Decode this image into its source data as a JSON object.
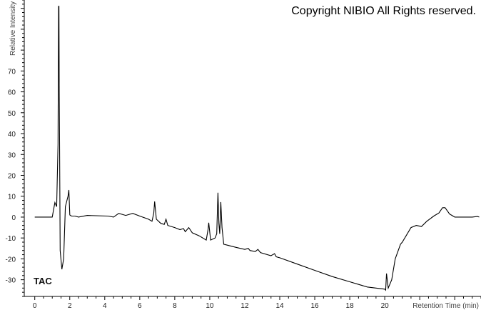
{
  "copyright": "Copyright NIBIO All Rights reserved.",
  "chart_data": {
    "type": "line",
    "title": "",
    "trace_label": "TAC",
    "xlabel": "Retention Time (min)",
    "ylabel": "Relative Intensity",
    "xlim": [
      -0.6,
      25.5
    ],
    "ylim": [
      -38,
      104
    ],
    "xticks": [
      0,
      2,
      4,
      6,
      8,
      10,
      12,
      14,
      16,
      18,
      20
    ],
    "yticks": [
      -30,
      -20,
      -10,
      0,
      10,
      20,
      30,
      40,
      50,
      60,
      70
    ],
    "grid": false,
    "line_color": "#000000",
    "series": [
      {
        "x": [
          0,
          1.0,
          1.15,
          1.25,
          1.33,
          1.36,
          1.38,
          1.4,
          1.42,
          1.45,
          1.55,
          1.65,
          1.75,
          1.9,
          1.95,
          2.0,
          2.1,
          2.3,
          2.5,
          3.0,
          4.2,
          4.5,
          4.8,
          5.2,
          5.6,
          6.0,
          6.5,
          6.7,
          6.8,
          6.85,
          6.95,
          7.2,
          7.4,
          7.5,
          7.6,
          8.0,
          8.3,
          8.5,
          8.6,
          8.8,
          9.0,
          9.4,
          9.8,
          9.9,
          9.94,
          10.05,
          10.3,
          10.4,
          10.47,
          10.52,
          10.57,
          10.63,
          10.7,
          10.8,
          11.5,
          12.0,
          12.2,
          12.3,
          12.6,
          12.75,
          12.9,
          13.5,
          13.7,
          13.8,
          14.0,
          15.0,
          16.0,
          17.0,
          18.0,
          19.0,
          20.0,
          20.05,
          20.1,
          20.2,
          20.4,
          20.6,
          20.9,
          21.0,
          21.5,
          21.8,
          22.1,
          22.4,
          22.8,
          23.1,
          23.3,
          23.45,
          23.7,
          24.0,
          25.0,
          25.3,
          25.4
        ],
        "y": [
          0,
          0,
          7,
          5,
          35,
          101,
          101,
          60,
          35,
          -16,
          -25,
          -20,
          5,
          10,
          13,
          1,
          0.5,
          0.5,
          0,
          0.8,
          0.5,
          0,
          1.8,
          0.8,
          1.8,
          0.5,
          -1,
          -2,
          2,
          7.5,
          -1,
          -3,
          -3.5,
          -1,
          -4,
          -5,
          -6,
          -5.5,
          -7,
          -5,
          -7.5,
          -9,
          -11,
          -6,
          -2.7,
          -11,
          -10,
          -8,
          11.7,
          -3,
          -8,
          7.2,
          -5,
          -13,
          -14.5,
          -15.5,
          -15,
          -16,
          -16.5,
          -15.5,
          -17,
          -18.5,
          -17.5,
          -19,
          -19.5,
          -22.5,
          -25.5,
          -28.5,
          -31,
          -33.5,
          -34.5,
          -35,
          -27,
          -34,
          -30,
          -20,
          -13,
          -12,
          -5,
          -4,
          -4.5,
          -2,
          0.5,
          2,
          4.5,
          4.5,
          1.5,
          0,
          0,
          0.3,
          0
        ]
      }
    ]
  }
}
